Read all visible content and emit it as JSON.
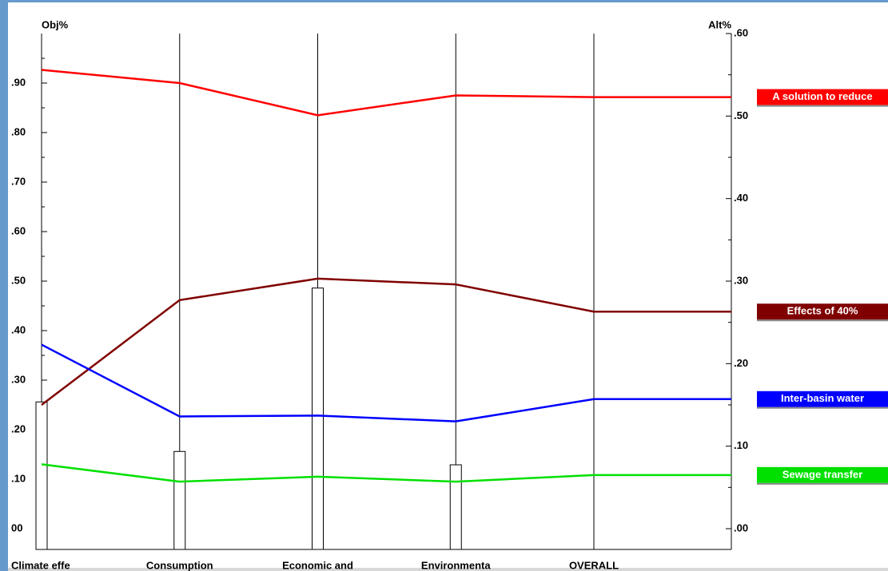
{
  "chart_data": {
    "type": "performance-sensitivity",
    "ylabel": "Obj%",
    "y2label": "Alt%",
    "categories": [
      "Climate effe",
      "Consumption",
      "Economic and",
      "Environmenta",
      "OVERALL"
    ],
    "ylim": [
      0,
      1
    ],
    "yticks": [
      {
        "value": 0,
        "label": "00"
      },
      {
        "value": 0.1,
        "label": ".10"
      },
      {
        "value": 0.2,
        "label": ".20"
      },
      {
        "value": 0.3,
        "label": ".30"
      },
      {
        "value": 0.4,
        "label": ".40"
      },
      {
        "value": 0.5,
        "label": ".50"
      },
      {
        "value": 0.6,
        "label": ".60"
      },
      {
        "value": 0.7,
        "label": ".70"
      },
      {
        "value": 0.8,
        "label": ".80"
      },
      {
        "value": 0.9,
        "label": ".90"
      }
    ],
    "y2lim": [
      0,
      0.6
    ],
    "y2ticks": [
      {
        "value": 0,
        "label": ".00"
      },
      {
        "value": 0.1,
        "label": ".10"
      },
      {
        "value": 0.2,
        "label": ".20"
      },
      {
        "value": 0.3,
        "label": ".30"
      },
      {
        "value": 0.4,
        "label": ".40"
      },
      {
        "value": 0.5,
        "label": ".50"
      },
      {
        "value": 0.6,
        "label": ".60"
      }
    ],
    "weights": [
      0.256,
      0.156,
      0.486,
      0.129
    ],
    "series": [
      {
        "name": "A solution to reduce",
        "color": "#ff0000",
        "axis": "y2",
        "values": [
          0.556,
          0.54,
          0.501,
          0.525,
          0.523
        ]
      },
      {
        "name": "Effects of 40%",
        "color": "#800000",
        "axis": "y2",
        "values": [
          0.15,
          0.277,
          0.303,
          0.296,
          0.263
        ]
      },
      {
        "name": "Inter-basin water",
        "color": "#0000ff",
        "axis": "y2",
        "values": [
          0.223,
          0.136,
          0.137,
          0.13,
          0.157
        ]
      },
      {
        "name": "Sewage transfer",
        "color": "#00e000",
        "axis": "y2",
        "values": [
          0.078,
          0.057,
          0.063,
          0.057,
          0.065
        ]
      }
    ]
  }
}
